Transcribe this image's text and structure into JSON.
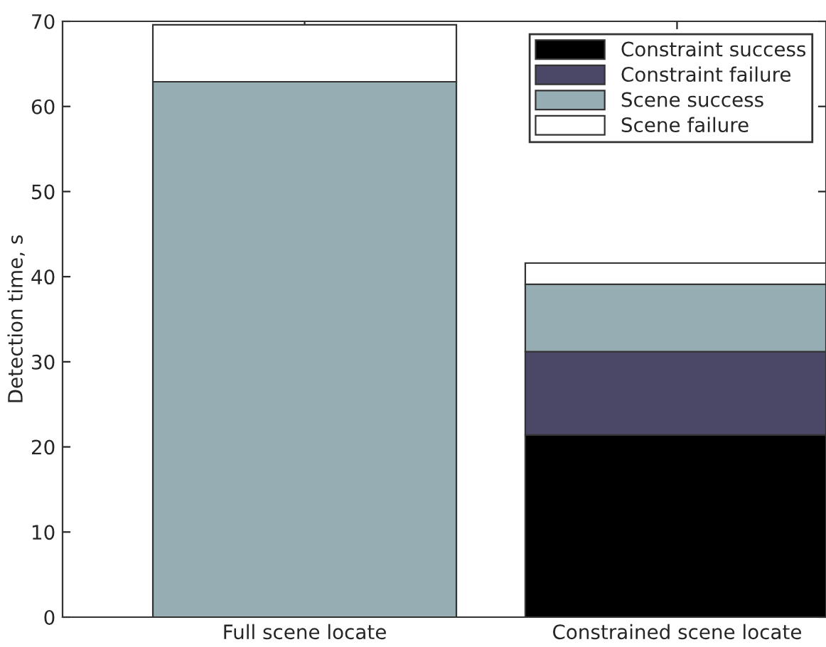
{
  "chart_data": {
    "type": "bar",
    "stacked": true,
    "ylabel": "Detection time, s",
    "categories": [
      "Full scene locate",
      "Constrained scene locate"
    ],
    "series": [
      {
        "name": "Constraint success",
        "color": "#000000",
        "values": [
          0,
          21.4
        ]
      },
      {
        "name": "Constraint failure",
        "color": "#4a4866",
        "values": [
          0,
          9.8
        ]
      },
      {
        "name": "Scene success",
        "color": "#96aeb3",
        "values": [
          62.9,
          7.9
        ]
      },
      {
        "name": "Scene failure",
        "color": "#ffffff",
        "values": [
          6.7,
          2.5
        ]
      }
    ],
    "ylim": [
      0,
      70
    ],
    "yticks": [
      0,
      10,
      20,
      30,
      40,
      50,
      60,
      70
    ],
    "grid": false,
    "legend": "top right"
  }
}
